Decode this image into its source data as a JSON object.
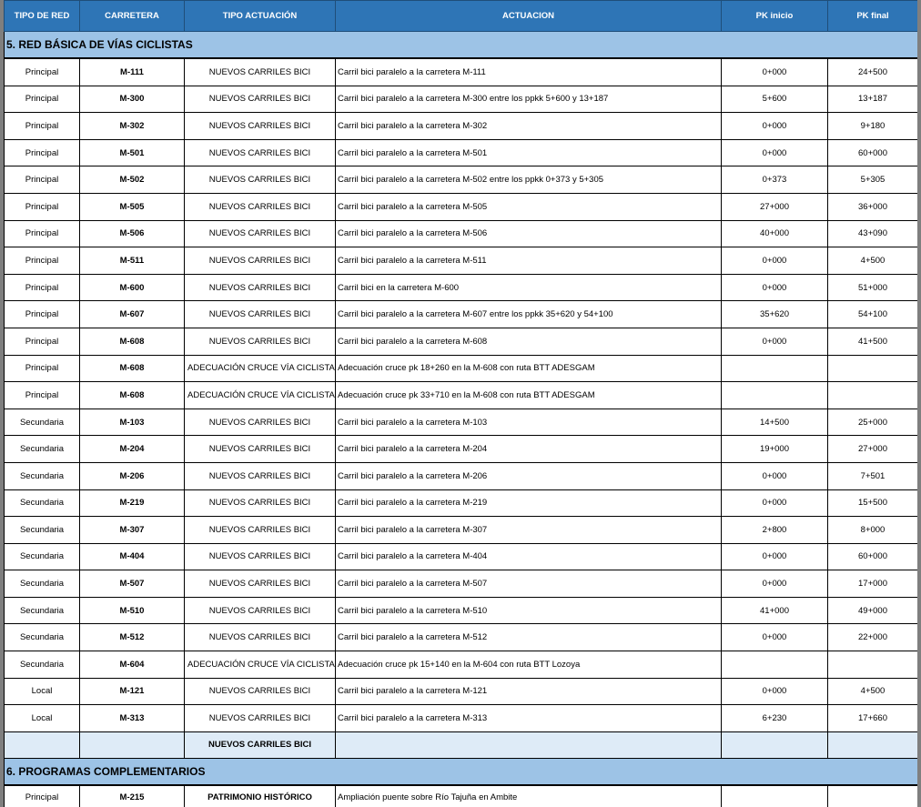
{
  "headers": [
    "TIPO DE RED",
    "CARRETERA",
    "TIPO ACTUACIÓN",
    "ACTUACION",
    "PK inicio",
    "PK final"
  ],
  "sections": [
    {
      "title": "5. RED BÁSICA DE VÍAS CICLISTAS",
      "rows": [
        [
          "Principal",
          "M-111",
          "NUEVOS CARRILES BICI",
          "Carril bici paralelo a la carretera M-111",
          "0+000",
          "24+500"
        ],
        [
          "Principal",
          "M-300",
          "NUEVOS CARRILES BICI",
          "Carril bici paralelo a la carretera M-300 entre los ppkk 5+600 y 13+187",
          "5+600",
          "13+187"
        ],
        [
          "Principal",
          "M-302",
          "NUEVOS CARRILES BICI",
          "Carril bici paralelo a la carretera M-302",
          "0+000",
          "9+180"
        ],
        [
          "Principal",
          "M-501",
          "NUEVOS CARRILES BICI",
          "Carril bici paralelo a la carretera M-501",
          "0+000",
          "60+000"
        ],
        [
          "Principal",
          "M-502",
          "NUEVOS CARRILES BICI",
          "Carril bici paralelo a la carretera M-502 entre los ppkk 0+373 y 5+305",
          "0+373",
          "5+305"
        ],
        [
          "Principal",
          "M-505",
          "NUEVOS CARRILES BICI",
          "Carril bici paralelo a la carretera M-505",
          "27+000",
          "36+000"
        ],
        [
          "Principal",
          "M-506",
          "NUEVOS CARRILES BICI",
          "Carril bici paralelo a la carretera M-506",
          "40+000",
          "43+090"
        ],
        [
          "Principal",
          "M-511",
          "NUEVOS CARRILES BICI",
          "Carril bici paralelo a la carretera M-511",
          "0+000",
          "4+500"
        ],
        [
          "Principal",
          "M-600",
          "NUEVOS CARRILES BICI",
          "Carril bici en la carretera M-600",
          "0+000",
          "51+000"
        ],
        [
          "Principal",
          "M-607",
          "NUEVOS CARRILES BICI",
          "Carril bici paralelo a la carretera M-607 entre los ppkk 35+620 y 54+100",
          "35+620",
          "54+100"
        ],
        [
          "Principal",
          "M-608",
          "NUEVOS CARRILES BICI",
          "Carril bici paralelo a la carretera M-608",
          "0+000",
          "41+500"
        ],
        [
          "Principal",
          "M-608",
          "ADECUACIÓN CRUCE VÍA CICLISTA",
          "Adecuación cruce pk 18+260 en la M-608 con ruta BTT ADESGAM",
          "",
          ""
        ],
        [
          "Principal",
          "M-608",
          "ADECUACIÓN CRUCE VÍA CICLISTA",
          "Adecuación cruce pk 33+710 en la M-608 con ruta BTT ADESGAM",
          "",
          ""
        ],
        [
          "Secundaria",
          "M-103",
          "NUEVOS CARRILES BICI",
          "Carril bici paralelo a la carretera M-103",
          "14+500",
          "25+000"
        ],
        [
          "Secundaria",
          "M-204",
          "NUEVOS CARRILES BICI",
          "Carril bici paralelo a la carretera M-204",
          "19+000",
          "27+000"
        ],
        [
          "Secundaria",
          "M-206",
          "NUEVOS CARRILES BICI",
          "Carril bici paralelo a la carretera M-206",
          "0+000",
          "7+501"
        ],
        [
          "Secundaria",
          "M-219",
          "NUEVOS CARRILES BICI",
          "Carril bici paralelo a la carretera M-219",
          "0+000",
          "15+500"
        ],
        [
          "Secundaria",
          "M-307",
          "NUEVOS CARRILES BICI",
          "Carril bici paralelo a la carretera M-307",
          "2+800",
          "8+000"
        ],
        [
          "Secundaria",
          "M-404",
          "NUEVOS CARRILES BICI",
          "Carril bici paralelo a la carretera M-404",
          "0+000",
          "60+000"
        ],
        [
          "Secundaria",
          "M-507",
          "NUEVOS CARRILES BICI",
          "Carril bici paralelo a la carretera M-507",
          "0+000",
          "17+000"
        ],
        [
          "Secundaria",
          "M-510",
          "NUEVOS CARRILES BICI",
          "Carril bici paralelo a la carretera M-510",
          "41+000",
          "49+000"
        ],
        [
          "Secundaria",
          "M-512",
          "NUEVOS CARRILES BICI",
          "Carril bici paralelo a la carretera M-512",
          "0+000",
          "22+000"
        ],
        [
          "Secundaria",
          "M-604",
          "ADECUACIÓN CRUCE VÍA CICLISTA",
          "Adecuación cruce pk 15+140 en la M-604 con ruta BTT Lozoya",
          "",
          ""
        ],
        [
          "Local",
          "M-121",
          "NUEVOS CARRILES BICI",
          "Carril bici paralelo a la carretera M-121",
          "0+000",
          "4+500"
        ],
        [
          "Local",
          "M-313",
          "NUEVOS CARRILES BICI",
          "Carril bici paralelo a la carretera M-313",
          "6+230",
          "17+660"
        ]
      ],
      "summary": [
        "",
        "",
        "NUEVOS CARRILES BICI",
        "",
        "",
        ""
      ]
    },
    {
      "title": "6. PROGRAMAS COMPLEMENTARIOS",
      "rows": [
        [
          "Principal",
          "M-215",
          "PATRIMONIO HISTÓRICO",
          "Ampliación puente sobre Río Tajuña en Ambite",
          "",
          ""
        ]
      ]
    }
  ],
  "colors": {
    "header": "#2e75b6",
    "section": "#9dc3e6",
    "summary": "#deebf7"
  }
}
